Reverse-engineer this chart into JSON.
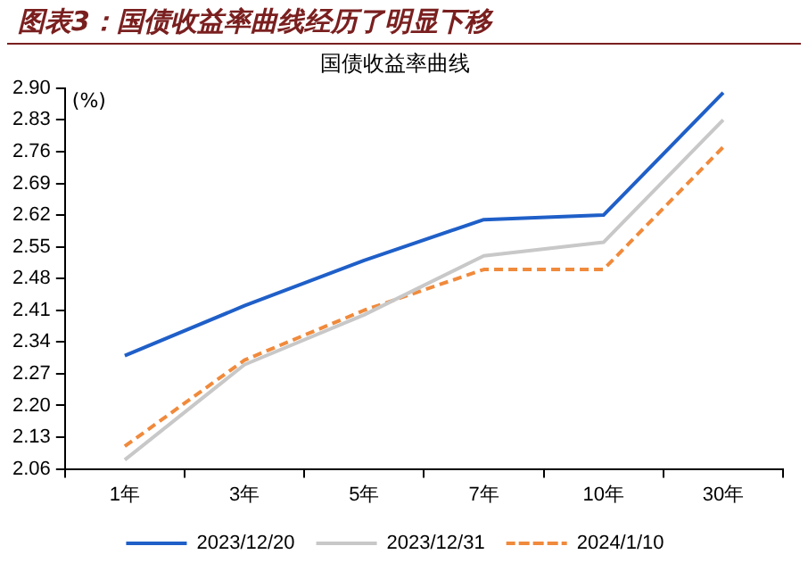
{
  "chart_data": {
    "type": "line",
    "title": "图表3：国债收益率曲线经历了明显下移",
    "subtitle": "国债收益率曲线",
    "ylabel": "(%)",
    "categories": [
      "1年",
      "3年",
      "5年",
      "7年",
      "10年",
      "30年"
    ],
    "series": [
      {
        "name": "2023/12/20",
        "color": "#1f5fc8",
        "values": [
          2.31,
          2.42,
          2.52,
          2.61,
          2.62,
          2.89
        ]
      },
      {
        "name": "2023/12/31",
        "color": "#c8c8c8",
        "values": [
          2.08,
          2.29,
          2.4,
          2.53,
          2.56,
          2.83
        ]
      },
      {
        "name": "2024/1/10",
        "color": "#f08a3c",
        "line_style": "dashed",
        "values": [
          2.11,
          2.3,
          2.41,
          2.5,
          2.5,
          2.77
        ]
      }
    ],
    "ylim": [
      2.06,
      2.9
    ],
    "yticks": [
      2.06,
      2.13,
      {
        "value": 2.2,
        "label": "2.20"
      },
      2.27,
      2.34,
      2.41,
      2.48,
      2.55,
      2.62,
      2.69,
      2.76,
      2.83,
      {
        "value": 2.9,
        "label": "2.90"
      }
    ],
    "grid": false,
    "legend": "bottom",
    "marker": "none",
    "line_style": "solid"
  }
}
